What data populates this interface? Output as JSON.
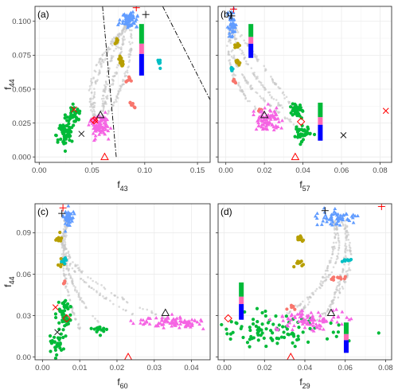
{
  "colors": {
    "gray": "#c8c8c8",
    "blue": "#619cff",
    "olive": "#b79f00",
    "salmon": "#f8766d",
    "cyan": "#00bfc4",
    "green": "#00ba38",
    "magenta": "#f564e3",
    "red": "#ff0000",
    "dark": "#1a1a1a",
    "bar_blue": "#0000ff",
    "bar_pink": "#ff69b4"
  },
  "chart_data": [
    {
      "type": "scatter",
      "panel_label": "(a)",
      "xlabel": "f",
      "xlabel_sub": "43",
      "ylabel": "f",
      "ylabel_sub": "44",
      "xlim": [
        -0.004,
        0.162
      ],
      "ylim": [
        -0.004,
        0.111
      ],
      "xticks": [
        "0.00",
        "0.05",
        "0.10",
        "0.15"
      ],
      "xtick_values": [
        0,
        0.05,
        0.1,
        0.15
      ],
      "yticks": [
        "0.000",
        "0.025",
        "0.050",
        "0.075",
        "0.100"
      ],
      "ytick_values": [
        0,
        0.025,
        0.05,
        0.075,
        0.1
      ],
      "clusters": [
        {
          "group": "blue",
          "x": 0.085,
          "y": 0.101,
          "sx": 0.004,
          "sy": 0.003,
          "n": 60
        },
        {
          "group": "olive",
          "x": 0.074,
          "y": 0.085,
          "sx": 0.0008,
          "sy": 0.0015,
          "n": 10
        },
        {
          "group": "olive",
          "x": 0.077,
          "y": 0.072,
          "sx": 0.0012,
          "sy": 0.0015,
          "n": 10
        },
        {
          "group": "olive",
          "x": 0.078,
          "y": 0.068,
          "sx": 0.001,
          "sy": 0.001,
          "n": 6
        },
        {
          "group": "salmon",
          "x": 0.085,
          "y": 0.058,
          "sx": 0.0012,
          "sy": 0.0012,
          "n": 8
        },
        {
          "group": "salmon",
          "x": 0.088,
          "y": 0.038,
          "sx": 0.0012,
          "sy": 0.0012,
          "n": 8
        },
        {
          "group": "cyan",
          "x": 0.114,
          "y": 0.07,
          "sx": 0.0015,
          "sy": 0.0015,
          "n": 8
        },
        {
          "group": "green",
          "x": 0.024,
          "y": 0.018,
          "sx": 0.004,
          "sy": 0.005,
          "n": 60
        },
        {
          "group": "green",
          "x": 0.033,
          "y": 0.031,
          "sx": 0.003,
          "sy": 0.003,
          "n": 40
        },
        {
          "group": "magenta",
          "x": 0.057,
          "y": 0.023,
          "sx": 0.004,
          "sy": 0.004,
          "n": 90
        }
      ],
      "markers": [
        {
          "shape": "plus",
          "color": "red",
          "x": 0.092,
          "y": 0.11
        },
        {
          "shape": "plus",
          "color": "dark",
          "x": 0.101,
          "y": 0.105
        },
        {
          "shape": "triangle",
          "color": "dark",
          "x": 0.058,
          "y": 0.031
        },
        {
          "shape": "cross",
          "color": "dark",
          "x": 0.04,
          "y": 0.017
        },
        {
          "shape": "cross",
          "color": "red",
          "x": 0.033,
          "y": 0.035
        },
        {
          "shape": "cross",
          "color": "red",
          "x": 0.053,
          "y": 0.027
        },
        {
          "shape": "diamond",
          "color": "red",
          "x": 0.052,
          "y": 0.027
        },
        {
          "shape": "triangle",
          "color": "red",
          "x": 0.062,
          "y": 0.0
        }
      ],
      "bars": [
        {
          "x": 0.097,
          "y0": 0.06,
          "y1": 0.098,
          "segments": [
            "bar_blue",
            "bar_pink",
            "green"
          ]
        }
      ],
      "dashed_lines": [
        [
          [
            0.06,
            0.111
          ],
          [
            0.073,
            0.0
          ]
        ],
        [
          [
            0.117,
            0.111
          ],
          [
            0.162,
            0.042
          ]
        ]
      ],
      "trails": [
        {
          "from": [
            0.084,
            0.099
          ],
          "to": [
            0.053,
            0.025
          ],
          "bow": -0.012
        },
        {
          "from": [
            0.083,
            0.099
          ],
          "to": [
            0.06,
            0.027
          ],
          "bow": -0.006
        },
        {
          "from": [
            0.082,
            0.099
          ],
          "to": [
            0.057,
            0.03
          ],
          "bow": 0.004
        },
        {
          "from": [
            0.085,
            0.098
          ],
          "to": [
            0.057,
            0.02
          ],
          "bow": -0.02
        },
        {
          "from": [
            0.086,
            0.099
          ],
          "to": [
            0.065,
            0.032
          ],
          "bow": 0.008
        }
      ]
    },
    {
      "type": "scatter",
      "panel_label": "(b)",
      "xlabel": "f",
      "xlabel_sub": "57",
      "ylabel": "",
      "ylabel_sub": "",
      "xlim": [
        -0.004,
        0.086
      ],
      "ylim": [
        -0.004,
        0.111
      ],
      "xticks": [
        "0.00",
        "0.02",
        "0.04",
        "0.06",
        "0.08"
      ],
      "xtick_values": [
        0,
        0.02,
        0.04,
        0.06,
        0.08
      ],
      "yticks": [],
      "ytick_values": [
        0,
        0.025,
        0.05,
        0.075,
        0.1
      ],
      "clusters": [
        {
          "group": "blue",
          "x": 0.003,
          "y": 0.098,
          "sx": 0.001,
          "sy": 0.005,
          "n": 50
        },
        {
          "group": "olive",
          "x": 0.006,
          "y": 0.082,
          "sx": 0.0008,
          "sy": 0.0012,
          "n": 8
        },
        {
          "group": "olive",
          "x": 0.006,
          "y": 0.07,
          "sx": 0.0008,
          "sy": 0.001,
          "n": 8
        },
        {
          "group": "cyan",
          "x": 0.003,
          "y": 0.065,
          "sx": 0.0006,
          "sy": 0.001,
          "n": 6
        },
        {
          "group": "salmon",
          "x": 0.005,
          "y": 0.056,
          "sx": 0.0008,
          "sy": 0.001,
          "n": 6
        },
        {
          "group": "salmon",
          "x": 0.018,
          "y": 0.035,
          "sx": 0.001,
          "sy": 0.001,
          "n": 5
        },
        {
          "group": "green",
          "x": 0.037,
          "y": 0.034,
          "sx": 0.0015,
          "sy": 0.002,
          "n": 40
        },
        {
          "group": "green",
          "x": 0.04,
          "y": 0.018,
          "sx": 0.002,
          "sy": 0.003,
          "n": 40
        },
        {
          "group": "magenta",
          "x": 0.022,
          "y": 0.027,
          "sx": 0.003,
          "sy": 0.004,
          "n": 80
        }
      ],
      "markers": [
        {
          "shape": "plus",
          "color": "red",
          "x": 0.004,
          "y": 0.109
        },
        {
          "shape": "plus",
          "color": "dark",
          "x": 0.003,
          "y": 0.104
        },
        {
          "shape": "triangle",
          "color": "dark",
          "x": 0.02,
          "y": 0.031
        },
        {
          "shape": "diamond",
          "color": "red",
          "x": 0.039,
          "y": 0.026
        },
        {
          "shape": "cross",
          "color": "dark",
          "x": 0.061,
          "y": 0.016
        },
        {
          "shape": "cross",
          "color": "red",
          "x": 0.083,
          "y": 0.034
        },
        {
          "shape": "triangle",
          "color": "red",
          "x": 0.036,
          "y": 0.0
        }
      ],
      "bars": [
        {
          "x": 0.013,
          "y0": 0.073,
          "y1": 0.098,
          "segments": [
            "bar_blue",
            "bar_pink",
            "green"
          ]
        },
        {
          "x": 0.049,
          "y0": 0.012,
          "y1": 0.04,
          "segments": [
            "bar_blue",
            "bar_pink",
            "green"
          ]
        }
      ],
      "dashed_lines": [],
      "trails": [
        {
          "from": [
            0.003,
            0.097
          ],
          "to": [
            0.02,
            0.028
          ],
          "bow": -0.008
        },
        {
          "from": [
            0.003,
            0.097
          ],
          "to": [
            0.04,
            0.02
          ],
          "bow": -0.012
        },
        {
          "from": [
            0.003,
            0.097
          ],
          "to": [
            0.03,
            0.035
          ],
          "bow": -0.004
        },
        {
          "from": [
            0.004,
            0.097
          ],
          "to": [
            0.038,
            0.03
          ],
          "bow": 0.0
        }
      ]
    },
    {
      "type": "scatter",
      "panel_label": "(c)",
      "xlabel": "f",
      "xlabel_sub": "60",
      "ylabel": "f",
      "ylabel_sub": "44",
      "xlim": [
        -0.002,
        0.045
      ],
      "ylim": [
        -0.002,
        0.111
      ],
      "xticks": [
        "0.00",
        "0.01",
        "0.02",
        "0.03",
        "0.04"
      ],
      "xtick_values": [
        0,
        0.01,
        0.02,
        0.03,
        0.04
      ],
      "yticks": [
        "0.00",
        "0.03",
        "0.06",
        "0.09"
      ],
      "ytick_values": [
        0,
        0.03,
        0.06,
        0.09
      ],
      "clusters": [
        {
          "group": "blue",
          "x": 0.007,
          "y": 0.101,
          "sx": 0.0006,
          "sy": 0.003,
          "n": 50
        },
        {
          "group": "olive",
          "x": 0.0045,
          "y": 0.086,
          "sx": 0.0004,
          "sy": 0.002,
          "n": 10
        },
        {
          "group": "olive",
          "x": 0.0052,
          "y": 0.069,
          "sx": 0.0004,
          "sy": 0.002,
          "n": 10
        },
        {
          "group": "cyan",
          "x": 0.006,
          "y": 0.07,
          "sx": 0.0004,
          "sy": 0.0015,
          "n": 6
        },
        {
          "group": "salmon",
          "x": 0.006,
          "y": 0.054,
          "sx": 0.0004,
          "sy": 0.001,
          "n": 6
        },
        {
          "group": "green",
          "x": 0.006,
          "y": 0.032,
          "sx": 0.001,
          "sy": 0.005,
          "n": 50
        },
        {
          "group": "green",
          "x": 0.004,
          "y": 0.01,
          "sx": 0.0008,
          "sy": 0.004,
          "n": 30
        },
        {
          "group": "green",
          "x": 0.015,
          "y": 0.02,
          "sx": 0.001,
          "sy": 0.0015,
          "n": 15
        },
        {
          "group": "magenta",
          "x": 0.035,
          "y": 0.025,
          "sx": 0.0045,
          "sy": 0.002,
          "n": 90
        }
      ],
      "markers": [
        {
          "shape": "plus",
          "color": "red",
          "x": 0.0055,
          "y": 0.108
        },
        {
          "shape": "plus",
          "color": "dark",
          "x": 0.0052,
          "y": 0.104
        },
        {
          "shape": "cross",
          "color": "red",
          "x": 0.0035,
          "y": 0.036
        },
        {
          "shape": "cross",
          "color": "dark",
          "x": 0.004,
          "y": 0.018
        },
        {
          "shape": "diamond",
          "color": "red",
          "x": 0.0065,
          "y": 0.028
        },
        {
          "shape": "triangle",
          "color": "dark",
          "x": 0.033,
          "y": 0.032
        },
        {
          "shape": "triangle",
          "color": "red",
          "x": 0.023,
          "y": 0.0
        }
      ],
      "bars": [],
      "dashed_lines": [],
      "trails": [
        {
          "from": [
            0.007,
            0.099
          ],
          "to": [
            0.033,
            0.028
          ],
          "bow": -0.01
        },
        {
          "from": [
            0.007,
            0.099
          ],
          "to": [
            0.015,
            0.025
          ],
          "bow": -0.004
        },
        {
          "from": [
            0.007,
            0.099
          ],
          "to": [
            0.025,
            0.03
          ],
          "bow": -0.008
        },
        {
          "from": [
            0.006,
            0.099
          ],
          "to": [
            0.01,
            0.02
          ],
          "bow": -0.002
        }
      ]
    },
    {
      "type": "scatter",
      "panel_label": "(d)",
      "xlabel": "f",
      "xlabel_sub": "29",
      "ylabel": "",
      "ylabel_sub": "",
      "xlim": [
        -0.003,
        0.083
      ],
      "ylim": [
        -0.002,
        0.111
      ],
      "xticks": [
        "0.00",
        "0.02",
        "0.04",
        "0.06",
        "0.08"
      ],
      "xtick_values": [
        0,
        0.02,
        0.04,
        0.06,
        0.08
      ],
      "yticks": [],
      "ytick_values": [
        0,
        0.03,
        0.06,
        0.09
      ],
      "clusters": [
        {
          "group": "blue",
          "x": 0.057,
          "y": 0.1,
          "sx": 0.006,
          "sy": 0.003,
          "n": 60
        },
        {
          "group": "olive",
          "x": 0.037,
          "y": 0.085,
          "sx": 0.0015,
          "sy": 0.002,
          "n": 10
        },
        {
          "group": "olive",
          "x": 0.038,
          "y": 0.068,
          "sx": 0.0015,
          "sy": 0.002,
          "n": 10
        },
        {
          "group": "cyan",
          "x": 0.062,
          "y": 0.07,
          "sx": 0.002,
          "sy": 0.001,
          "n": 8
        },
        {
          "group": "salmon",
          "x": 0.057,
          "y": 0.057,
          "sx": 0.003,
          "sy": 0.001,
          "n": 10
        },
        {
          "group": "salmon",
          "x": 0.033,
          "y": 0.036,
          "sx": 0.0015,
          "sy": 0.001,
          "n": 6
        },
        {
          "group": "green",
          "x": 0.025,
          "y": 0.02,
          "sx": 0.012,
          "sy": 0.007,
          "n": 100
        },
        {
          "group": "magenta",
          "x": 0.042,
          "y": 0.026,
          "sx": 0.008,
          "sy": 0.004,
          "n": 90
        }
      ],
      "markers": [
        {
          "shape": "plus",
          "color": "dark",
          "x": 0.05,
          "y": 0.106
        },
        {
          "shape": "plus",
          "color": "red",
          "x": 0.078,
          "y": 0.109
        },
        {
          "shape": "diamond",
          "color": "red",
          "x": 0.002,
          "y": 0.028
        },
        {
          "shape": "triangle",
          "color": "dark",
          "x": 0.053,
          "y": 0.032
        },
        {
          "shape": "triangle",
          "color": "red",
          "x": 0.033,
          "y": 0.0
        }
      ],
      "bars": [
        {
          "x": 0.0085,
          "y0": 0.027,
          "y1": 0.054,
          "segments": [
            "bar_blue",
            "bar_pink",
            "green"
          ]
        },
        {
          "x": 0.0605,
          "y0": 0.003,
          "y1": 0.025,
          "segments": [
            "bar_blue",
            "bar_pink",
            "green"
          ]
        }
      ],
      "dashed_lines": [],
      "trails": [
        {
          "from": [
            0.055,
            0.099
          ],
          "to": [
            0.035,
            0.028
          ],
          "bow": 0.006
        },
        {
          "from": [
            0.058,
            0.099
          ],
          "to": [
            0.045,
            0.025
          ],
          "bow": 0.01
        },
        {
          "from": [
            0.06,
            0.099
          ],
          "to": [
            0.05,
            0.03
          ],
          "bow": 0.004
        },
        {
          "from": [
            0.054,
            0.099
          ],
          "to": [
            0.03,
            0.03
          ],
          "bow": 0.012
        }
      ]
    }
  ]
}
